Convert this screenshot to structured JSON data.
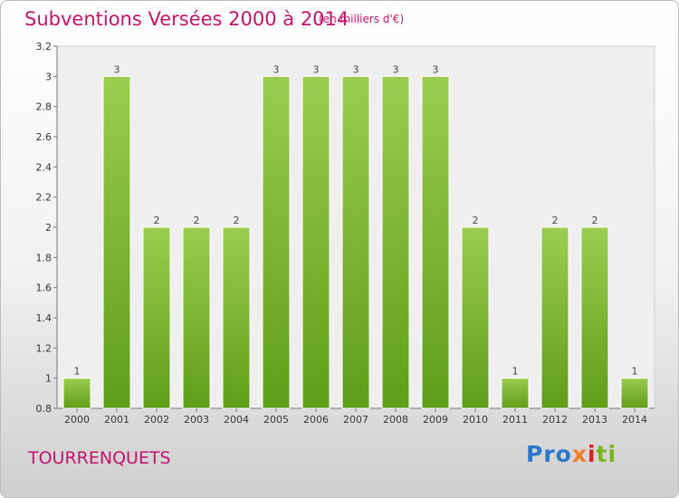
{
  "title": "Subventions Versées 2000 à 2014",
  "subtitle": "(en milliers d'€)",
  "commune": "TOURRENQUETS",
  "logo": {
    "parts": [
      "Pro",
      "x",
      "i",
      "ti"
    ]
  },
  "colors": {
    "bar_top": "#9acd4f",
    "bar_bottom": "#5f9e18",
    "title": "#c0156b"
  },
  "chart_data": {
    "type": "bar",
    "title": "Subventions Versées 2000 à 2014",
    "xlabel": "",
    "ylabel": "",
    "categories": [
      "2000",
      "2001",
      "2002",
      "2003",
      "2004",
      "2005",
      "2006",
      "2007",
      "2008",
      "2009",
      "2010",
      "2011",
      "2012",
      "2013",
      "2014"
    ],
    "values": [
      1,
      3,
      2,
      2,
      2,
      3,
      3,
      3,
      3,
      3,
      2,
      1,
      2,
      2,
      1
    ],
    "ylim": [
      0.8,
      3.2
    ],
    "yticks": [
      0.8,
      1,
      1.2,
      1.4,
      1.6,
      1.8,
      2,
      2.2,
      2.4,
      2.6,
      2.8,
      3,
      3.2
    ],
    "ytick_labels": [
      "0.8",
      "1",
      "1.2",
      "1.4",
      "1.6",
      "1.8",
      "2",
      "2.2",
      "2.4",
      "2.6",
      "2.8",
      "3",
      "3.2"
    ],
    "data_labels": [
      "1",
      "3",
      "2",
      "2",
      "2",
      "3",
      "3",
      "3",
      "3",
      "3",
      "2",
      "1",
      "2",
      "2",
      "1"
    ],
    "grid": false,
    "legend": "none"
  }
}
